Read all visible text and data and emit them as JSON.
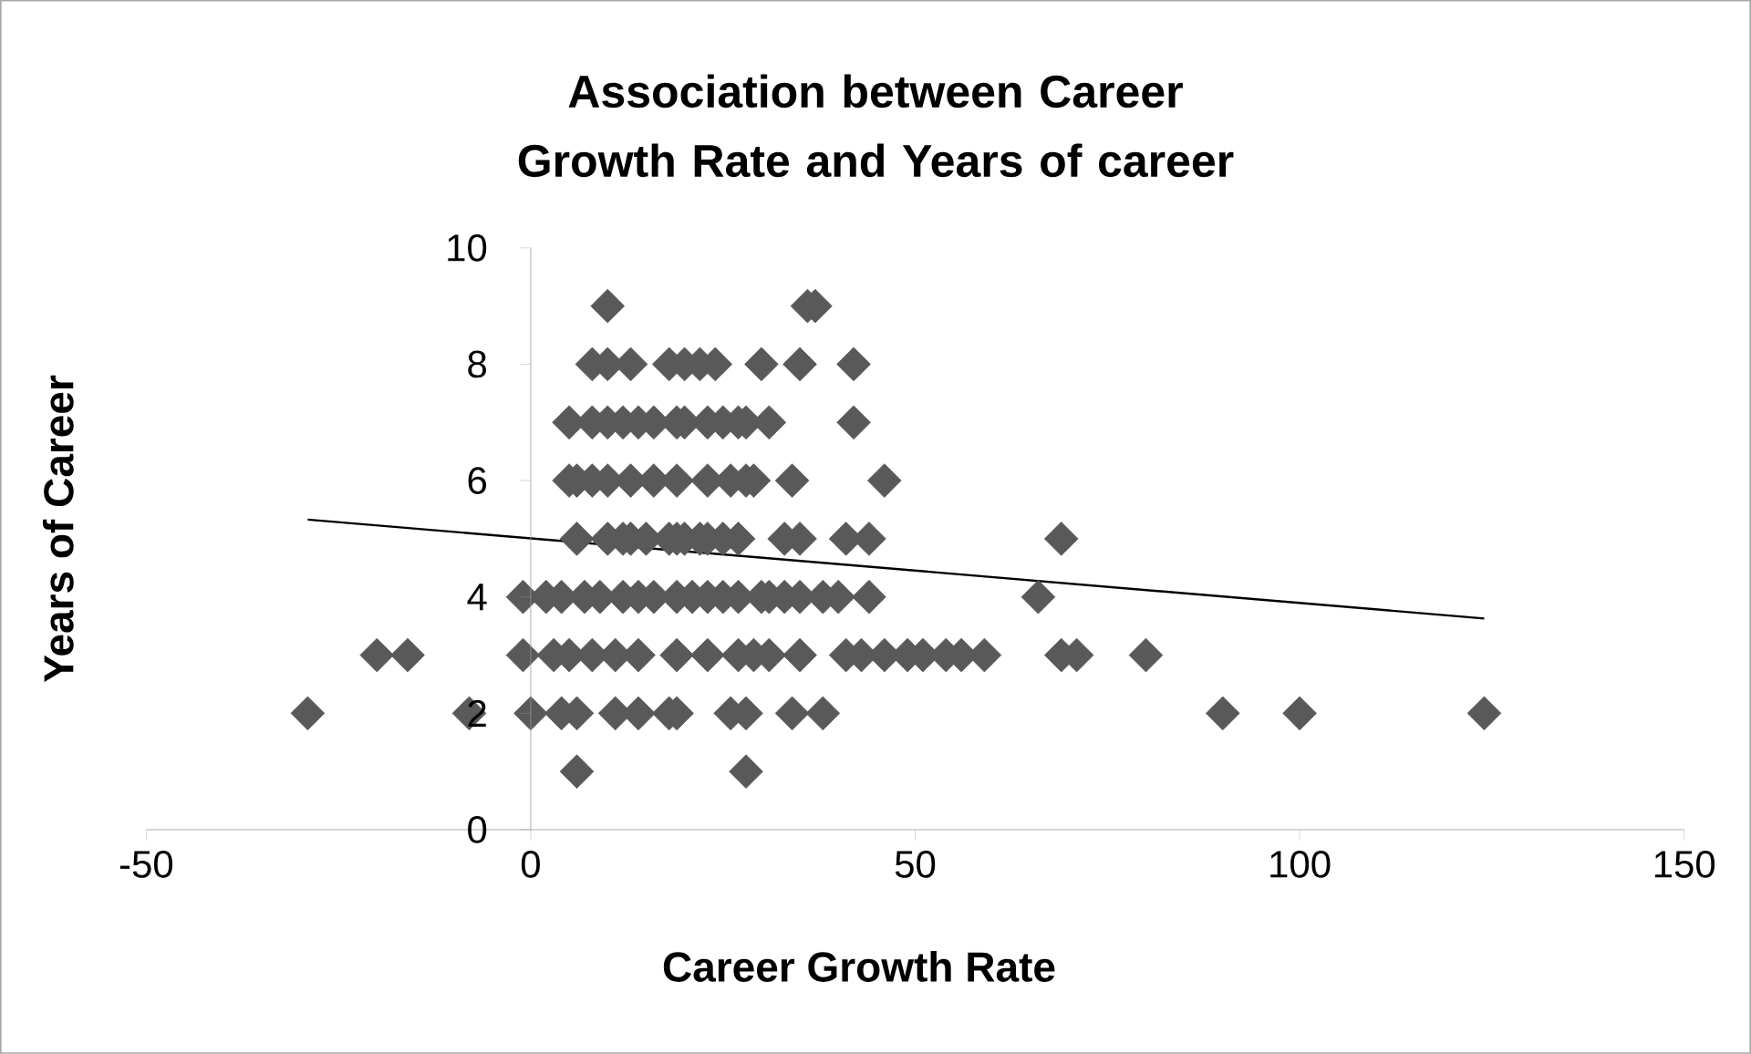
{
  "chart_data": {
    "type": "scatter",
    "title": "Association between Career Growth Rate and Years of career",
    "xlabel": "Career Growth Rate",
    "ylabel": "Years of Career",
    "xlim": [
      -50,
      150
    ],
    "xticks": [
      -50,
      0,
      50,
      100,
      150
    ],
    "ylim": [
      0,
      10
    ],
    "yticks": [
      0,
      2,
      4,
      6,
      8,
      10
    ],
    "grid": false,
    "series": [
      {
        "marker": "diamond",
        "color": "#595959",
        "x": [
          10,
          36,
          37,
          8,
          10,
          13,
          18,
          20,
          22,
          24,
          30,
          35,
          42,
          5,
          8,
          10,
          12,
          14,
          16,
          19,
          20,
          23,
          25,
          27,
          28,
          31,
          42,
          5,
          6,
          8,
          10,
          13,
          16,
          19,
          23,
          26,
          28,
          29,
          34,
          46,
          6,
          10,
          12,
          13,
          15,
          18,
          19,
          20,
          22,
          23,
          25,
          27,
          33,
          35,
          41,
          44,
          69,
          -1,
          2,
          4,
          7,
          9,
          12,
          14,
          16,
          19,
          21,
          23,
          25,
          27,
          30,
          31,
          33,
          35,
          38,
          40,
          44,
          66,
          -20,
          -16,
          -1,
          3,
          5,
          8,
          11,
          14,
          19,
          23,
          27,
          29,
          31,
          35,
          41,
          43,
          46,
          49,
          51,
          54,
          56,
          59,
          69,
          71,
          80,
          -29,
          -8,
          0,
          4,
          6,
          11,
          14,
          18,
          19,
          26,
          28,
          34,
          38,
          90,
          100,
          124,
          6,
          28
        ],
        "values": [
          9,
          9,
          9,
          8,
          8,
          8,
          8,
          8,
          8,
          8,
          8,
          8,
          8,
          7,
          7,
          7,
          7,
          7,
          7,
          7,
          7,
          7,
          7,
          7,
          7,
          7,
          7,
          6,
          6,
          6,
          6,
          6,
          6,
          6,
          6,
          6,
          6,
          6,
          6,
          6,
          5,
          5,
          5,
          5,
          5,
          5,
          5,
          5,
          5,
          5,
          5,
          5,
          5,
          5,
          5,
          5,
          5,
          4,
          4,
          4,
          4,
          4,
          4,
          4,
          4,
          4,
          4,
          4,
          4,
          4,
          4,
          4,
          4,
          4,
          4,
          4,
          4,
          4,
          3,
          3,
          3,
          3,
          3,
          3,
          3,
          3,
          3,
          3,
          3,
          3,
          3,
          3,
          3,
          3,
          3,
          3,
          3,
          3,
          3,
          3,
          3,
          3,
          3,
          2,
          2,
          2,
          2,
          2,
          2,
          2,
          2,
          2,
          2,
          2,
          2,
          2,
          2,
          2,
          2,
          1,
          1
        ]
      },
      {
        "type": "line",
        "color": "#000000",
        "x": [
          -29,
          124
        ],
        "values": [
          5.33,
          3.63
        ]
      }
    ]
  }
}
